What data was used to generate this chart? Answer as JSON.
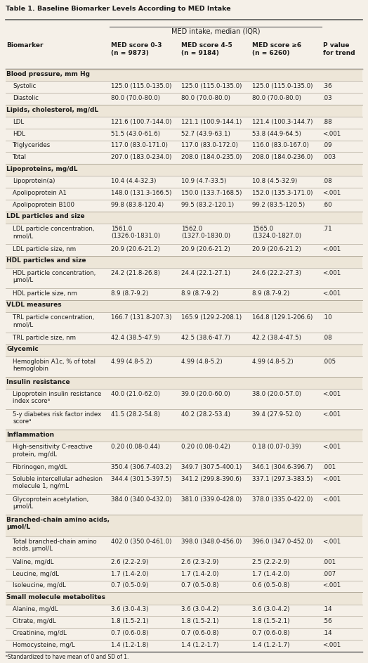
{
  "title": "Table 1. Baseline Biomarker Levels According to MED Intake",
  "col_headers": [
    "Biomarker",
    "MED score 0-3\n(n = 9873)",
    "MED score 4-5\n(n = 9184)",
    "MED score ≥6\n(n = 6260)",
    "P value\nfor trend"
  ],
  "span_header": "MED intake, median (IQR)",
  "rows": [
    {
      "type": "section",
      "label": "Blood pressure, mm Hg"
    },
    {
      "type": "data",
      "indent": true,
      "label": "Systolic",
      "vals": [
        "125.0 (115.0-135.0)",
        "125.0 (115.0-135.0)",
        "125.0 (115.0-135.0)",
        ".36"
      ]
    },
    {
      "type": "data",
      "indent": true,
      "label": "Diastolic",
      "vals": [
        "80.0 (70.0-80.0)",
        "80.0 (70.0-80.0)",
        "80.0 (70.0-80.0)",
        ".03"
      ]
    },
    {
      "type": "section",
      "label": "Lipids, cholesterol, mg/dL"
    },
    {
      "type": "data",
      "indent": true,
      "label": "LDL",
      "vals": [
        "121.6 (100.7-144.0)",
        "121.1 (100.9-144.1)",
        "121.4 (100.3-144.7)",
        ".88"
      ]
    },
    {
      "type": "data",
      "indent": true,
      "label": "HDL",
      "vals": [
        "51.5 (43.0-61.6)",
        "52.7 (43.9-63.1)",
        "53.8 (44.9-64.5)",
        "<.001"
      ]
    },
    {
      "type": "data",
      "indent": true,
      "label": "Triglycerides",
      "vals": [
        "117.0 (83.0-171.0)",
        "117.0 (83.0-172.0)",
        "116.0 (83.0-167.0)",
        ".09"
      ]
    },
    {
      "type": "data",
      "indent": true,
      "label": "Total",
      "vals": [
        "207.0 (183.0-234.0)",
        "208.0 (184.0-235.0)",
        "208.0 (184.0-236.0)",
        ".003"
      ]
    },
    {
      "type": "section",
      "label": "Lipoproteins, mg/dL"
    },
    {
      "type": "data",
      "indent": true,
      "label": "Lipoprotein(a)",
      "vals": [
        "10.4 (4.4-32.3)",
        "10.9 (4.7-33.5)",
        "10.8 (4.5-32.9)",
        ".08"
      ]
    },
    {
      "type": "data",
      "indent": true,
      "label": "Apolipoprotein A1",
      "vals": [
        "148.0 (131.3-166.5)",
        "150.0 (133.7-168.5)",
        "152.0 (135.3-171.0)",
        "<.001"
      ]
    },
    {
      "type": "data",
      "indent": true,
      "label": "Apolipoprotein B100",
      "vals": [
        "99.8 (83.8-120.4)",
        "99.5 (83.2-120.1)",
        "99.2 (83.5-120.5)",
        ".60"
      ]
    },
    {
      "type": "section",
      "label": "LDL particles and size"
    },
    {
      "type": "data",
      "indent": true,
      "label": "LDL particle concentration,\nnmol/L",
      "vals": [
        "1561.0\n(1326.0-1831.0)",
        "1562.0\n(1327.0-1830.0)",
        "1565.0\n(1324.0-1827.0)",
        ".71"
      ]
    },
    {
      "type": "data",
      "indent": true,
      "label": "LDL particle size, nm",
      "vals": [
        "20.9 (20.6-21.2)",
        "20.9 (20.6-21.2)",
        "20.9 (20.6-21.2)",
        "<.001"
      ]
    },
    {
      "type": "section",
      "label": "HDL particles and size"
    },
    {
      "type": "data",
      "indent": true,
      "label": "HDL particle concentration,\nμmol/L",
      "vals": [
        "24.2 (21.8-26.8)",
        "24.4 (22.1-27.1)",
        "24.6 (22.2-27.3)",
        "<.001"
      ]
    },
    {
      "type": "data",
      "indent": true,
      "label": "HDL particle size, nm",
      "vals": [
        "8.9 (8.7-9.2)",
        "8.9 (8.7-9.2)",
        "8.9 (8.7-9.2)",
        "<.001"
      ]
    },
    {
      "type": "section",
      "label": "VLDL measures"
    },
    {
      "type": "data",
      "indent": true,
      "label": "TRL particle concentration,\nnmol/L",
      "vals": [
        "166.7 (131.8-207.3)",
        "165.9 (129.2-208.1)",
        "164.8 (129.1-206.6)",
        ".10"
      ]
    },
    {
      "type": "data",
      "indent": true,
      "label": "TRL particle size, nm",
      "vals": [
        "42.4 (38.5-47.9)",
        "42.5 (38.6-47.7)",
        "42.2 (38.4-47.5)",
        ".08"
      ]
    },
    {
      "type": "section",
      "label": "Glycemic"
    },
    {
      "type": "data",
      "indent": true,
      "label": "Hemoglobin A1c, % of total\nhemoglobin",
      "vals": [
        "4.99 (4.8-5.2)",
        "4.99 (4.8-5.2)",
        "4.99 (4.8-5.2)",
        ".005"
      ]
    },
    {
      "type": "section",
      "label": "Insulin resistance"
    },
    {
      "type": "data",
      "indent": true,
      "label": "Lipoprotein insulin resistance\nindex scoreᵃ",
      "vals": [
        "40.0 (21.0-62.0)",
        "39.0 (20.0-60.0)",
        "38.0 (20.0-57.0)",
        "<.001"
      ]
    },
    {
      "type": "data",
      "indent": true,
      "label": "5-y diabetes risk factor index\nscoreᵃ",
      "vals": [
        "41.5 (28.2-54.8)",
        "40.2 (28.2-53.4)",
        "39.4 (27.9-52.0)",
        "<.001"
      ]
    },
    {
      "type": "section",
      "label": "Inflammation"
    },
    {
      "type": "data",
      "indent": true,
      "label": "High-sensitivity C-reactive\nprotein, mg/dL",
      "vals": [
        "0.20 (0.08-0.44)",
        "0.20 (0.08-0.42)",
        "0.18 (0.07-0.39)",
        "<.001"
      ]
    },
    {
      "type": "data",
      "indent": true,
      "label": "Fibrinogen, mg/dL",
      "vals": [
        "350.4 (306.7-403.2)",
        "349.7 (307.5-400.1)",
        "346.1 (304.6-396.7)",
        ".001"
      ]
    },
    {
      "type": "data",
      "indent": true,
      "label": "Soluble intercellular adhesion\nmolecule 1, ng/mL",
      "vals": [
        "344.4 (301.5-397.5)",
        "341.2 (299.8-390.6)",
        "337.1 (297.3-383.5)",
        "<.001"
      ]
    },
    {
      "type": "data",
      "indent": true,
      "label": "Glycoprotein acetylation,\nμmol/L",
      "vals": [
        "384.0 (340.0-432.0)",
        "381.0 (339.0-428.0)",
        "378.0 (335.0-422.0)",
        "<.001"
      ]
    },
    {
      "type": "section",
      "label": "Branched-chain amino acids,\nμmol/L"
    },
    {
      "type": "data",
      "indent": true,
      "label": "Total branched-chain amino\nacids, μmol/L",
      "vals": [
        "402.0 (350.0-461.0)",
        "398.0 (348.0-456.0)",
        "396.0 (347.0-452.0)",
        "<.001"
      ]
    },
    {
      "type": "data",
      "indent": true,
      "label": "Valine, mg/dL",
      "vals": [
        "2.6 (2.2-2.9)",
        "2.6 (2.3-2.9)",
        "2.5 (2.2-2.9)",
        ".001"
      ]
    },
    {
      "type": "data",
      "indent": true,
      "label": "Leucine, mg/dL",
      "vals": [
        "1.7 (1.4-2.0)",
        "1.7 (1.4-2.0)",
        "1.7 (1.4-2.0)",
        ".007"
      ]
    },
    {
      "type": "data",
      "indent": true,
      "label": "Isoleucine, mg/dL",
      "vals": [
        "0.7 (0.5-0.9)",
        "0.7 (0.5-0.8)",
        "0.6 (0.5-0.8)",
        "<.001"
      ]
    },
    {
      "type": "section",
      "label": "Small molecule metabolites"
    },
    {
      "type": "data",
      "indent": true,
      "label": "Alanine, mg/dL",
      "vals": [
        "3.6 (3.0-4.3)",
        "3.6 (3.0-4.2)",
        "3.6 (3.0-4.2)",
        ".14"
      ]
    },
    {
      "type": "data",
      "indent": true,
      "label": "Citrate, mg/dL",
      "vals": [
        "1.8 (1.5-2.1)",
        "1.8 (1.5-2.1)",
        "1.8 (1.5-2.1)",
        ".56"
      ]
    },
    {
      "type": "data",
      "indent": true,
      "label": "Creatinine, mg/dL",
      "vals": [
        "0.7 (0.6-0.8)",
        "0.7 (0.6-0.8)",
        "0.7 (0.6-0.8)",
        ".14"
      ]
    },
    {
      "type": "data",
      "indent": true,
      "label": "Homocysteine, mg/L",
      "vals": [
        "1.4 (1.2-1.8)",
        "1.4 (1.2-1.7)",
        "1.4 (1.2-1.7)",
        "<.001"
      ]
    }
  ],
  "bg_color": "#f5f0e8",
  "section_bg": "#ede6d8",
  "text_color": "#1a1a1a",
  "line_color": "#b0a898",
  "header_line_color": "#5a5a5a"
}
